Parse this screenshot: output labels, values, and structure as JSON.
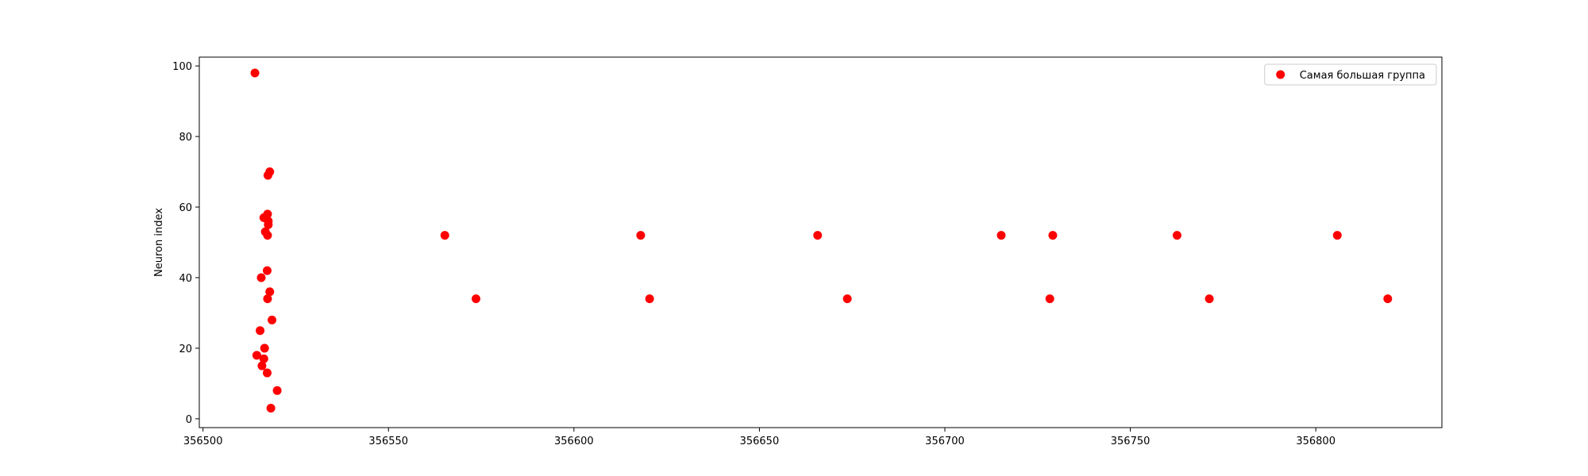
{
  "chart_data": {
    "type": "scatter",
    "title": "",
    "xlabel": "",
    "ylabel": "Neuron index",
    "xlim": [
      356499,
      356834
    ],
    "ylim": [
      -2.5,
      102.5
    ],
    "xticks": [
      356500,
      356550,
      356600,
      356650,
      356700,
      356750,
      356800
    ],
    "yticks": [
      0,
      20,
      40,
      60,
      80,
      100
    ],
    "grid": false,
    "legend": "top-right",
    "color": "#ff0000",
    "series": [
      {
        "name": "Самая большая группа",
        "points": [
          [
            356514.0,
            98
          ],
          [
            356518.0,
            70
          ],
          [
            356517.5,
            69
          ],
          [
            356517.4,
            58
          ],
          [
            356516.4,
            57
          ],
          [
            356517.6,
            56
          ],
          [
            356517.6,
            55
          ],
          [
            356516.8,
            53
          ],
          [
            356517.4,
            52
          ],
          [
            356517.3,
            42
          ],
          [
            356515.7,
            40
          ],
          [
            356518.0,
            36
          ],
          [
            356517.4,
            34
          ],
          [
            356518.6,
            28
          ],
          [
            356515.4,
            25
          ],
          [
            356516.6,
            20
          ],
          [
            356514.5,
            18
          ],
          [
            356516.4,
            17
          ],
          [
            356515.9,
            15
          ],
          [
            356517.3,
            13
          ],
          [
            356520.0,
            8
          ],
          [
            356518.3,
            3
          ],
          [
            356565.2,
            52
          ],
          [
            356573.6,
            34
          ],
          [
            356618.0,
            52
          ],
          [
            356620.4,
            34
          ],
          [
            356665.7,
            52
          ],
          [
            356673.7,
            34
          ],
          [
            356715.2,
            52
          ],
          [
            356728.3,
            34
          ],
          [
            356729.1,
            52
          ],
          [
            356762.6,
            52
          ],
          [
            356771.3,
            34
          ],
          [
            356805.8,
            52
          ],
          [
            356819.4,
            34
          ]
        ]
      }
    ]
  }
}
